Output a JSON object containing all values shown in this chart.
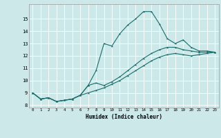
{
  "xlabel": "Humidex (Indice chaleur)",
  "background_color": "#cce8e8",
  "line_color": "#1a6b6b",
  "xlim": [
    -0.5,
    23.5
  ],
  "ylim": [
    7.8,
    16.2
  ],
  "yticks": [
    8,
    9,
    10,
    11,
    12,
    13,
    14,
    15
  ],
  "xticks": [
    0,
    1,
    2,
    3,
    4,
    5,
    6,
    7,
    8,
    9,
    10,
    11,
    12,
    13,
    14,
    15,
    16,
    17,
    18,
    19,
    20,
    21,
    22,
    23
  ],
  "line1_x": [
    0,
    1,
    2,
    3,
    4,
    5,
    6,
    7,
    8,
    9,
    10,
    11,
    12,
    13,
    14,
    15,
    16,
    17,
    18,
    19,
    20,
    21,
    22,
    23
  ],
  "line1_y": [
    9.0,
    8.5,
    8.6,
    8.3,
    8.4,
    8.5,
    8.8,
    9.6,
    10.8,
    13.0,
    12.8,
    13.8,
    14.5,
    15.0,
    15.6,
    15.6,
    14.6,
    13.4,
    13.0,
    13.3,
    12.7,
    12.4,
    12.4,
    12.3
  ],
  "line2_x": [
    0,
    1,
    2,
    3,
    4,
    5,
    6,
    7,
    8,
    9,
    10,
    11,
    12,
    13,
    14,
    15,
    16,
    17,
    18,
    19,
    20,
    21,
    22,
    23
  ],
  "line2_y": [
    9.0,
    8.5,
    8.6,
    8.3,
    8.4,
    8.5,
    8.8,
    9.6,
    9.8,
    9.6,
    9.9,
    10.3,
    10.8,
    11.3,
    11.8,
    12.2,
    12.5,
    12.7,
    12.7,
    12.5,
    12.4,
    12.3,
    12.3,
    12.3
  ],
  "line3_x": [
    0,
    1,
    2,
    3,
    4,
    5,
    6,
    7,
    8,
    9,
    10,
    11,
    12,
    13,
    14,
    15,
    16,
    17,
    18,
    19,
    20,
    21,
    22,
    23
  ],
  "line3_y": [
    9.0,
    8.5,
    8.6,
    8.3,
    8.4,
    8.5,
    8.8,
    9.0,
    9.2,
    9.4,
    9.7,
    10.0,
    10.4,
    10.8,
    11.2,
    11.6,
    11.9,
    12.1,
    12.2,
    12.1,
    12.0,
    12.1,
    12.2,
    12.3
  ]
}
